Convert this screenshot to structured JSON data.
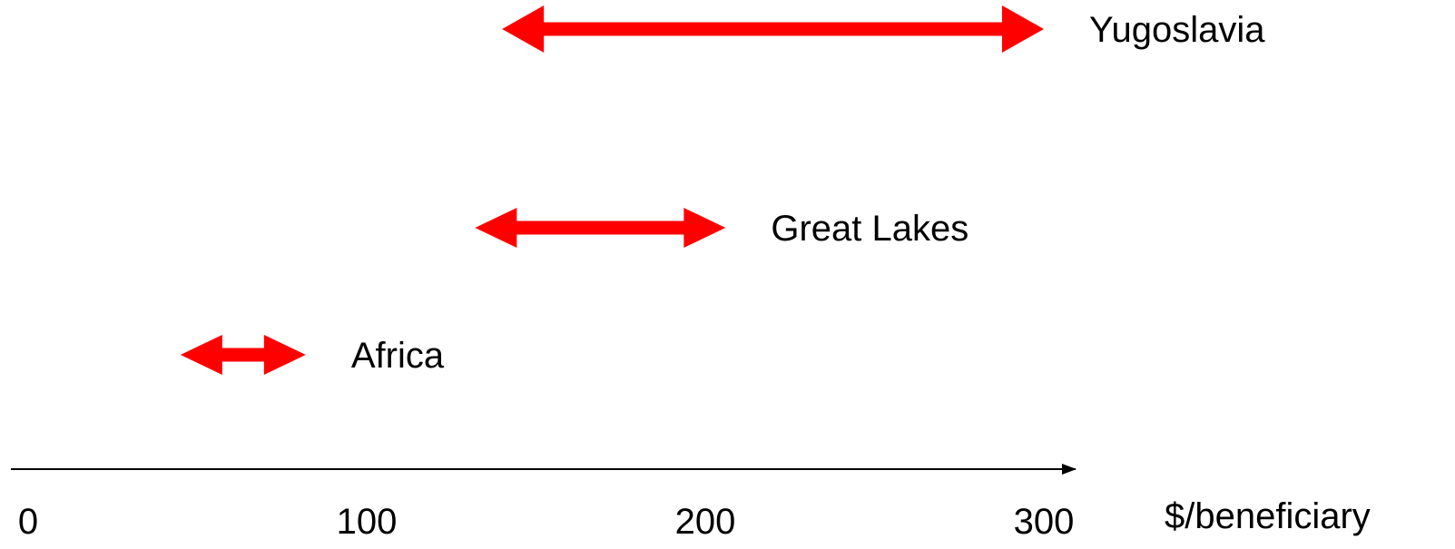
{
  "chart_data": {
    "type": "range",
    "title": "",
    "xlabel": "$/beneficiary",
    "xlim": [
      0,
      300
    ],
    "x_ticks": [
      0,
      100,
      200,
      300
    ],
    "grid": false,
    "legend": "none",
    "series_color": "#ff0000",
    "axis_color": "#000000",
    "ranges": [
      {
        "label": "Yugoslavia",
        "low": 140,
        "high": 300
      },
      {
        "label": "Great Lakes",
        "low": 132,
        "high": 206
      },
      {
        "label": "Africa",
        "low": 45,
        "high": 82
      }
    ]
  }
}
